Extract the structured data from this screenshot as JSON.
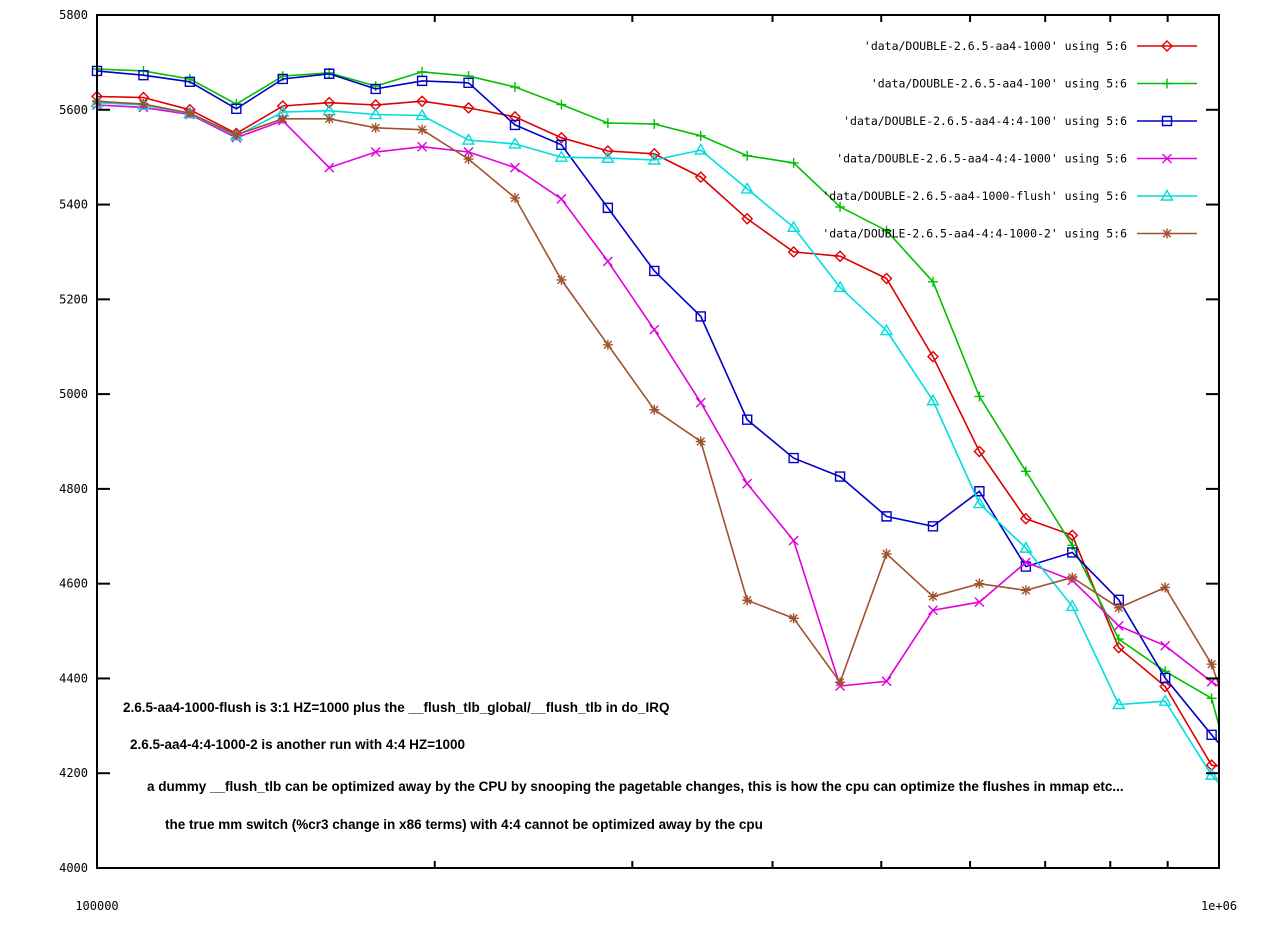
{
  "chart_data": {
    "type": "line",
    "title": "",
    "xlabel": "",
    "ylabel": "",
    "x_scale": "log",
    "xlim": [
      100000,
      1000000
    ],
    "ylim": [
      4000,
      5800
    ],
    "grid": false,
    "legend_position": "top-right",
    "y_ticks": [
      4000,
      4200,
      4400,
      4600,
      4800,
      5000,
      5200,
      5400,
      5600,
      5800
    ],
    "x_major_tick_labels": [
      "100000",
      "1e+06"
    ],
    "x_minor_ticks": [
      200000,
      300000,
      400000,
      500000,
      600000,
      700000,
      800000,
      900000
    ],
    "x": [
      100000,
      110000,
      121000,
      133100,
      146410,
      161051,
      177156,
      194872,
      214359,
      235795,
      259374,
      285312,
      313843,
      345227,
      379750,
      417725,
      459497,
      505447,
      555992,
      611591,
      672750,
      740025,
      814027,
      895430,
      984973
    ],
    "series": [
      {
        "name": "'data/DOUBLE-2.6.5-aa4-1000' using 5:6",
        "color": "#e00000",
        "marker": "diamond",
        "y": [
          5628,
          5626,
          5600,
          5550,
          5608,
          5615,
          5610,
          5618,
          5604,
          5585,
          5541,
          5513,
          5507,
          5458,
          5370,
          5300,
          5291,
          5244,
          5079,
          4879,
          4737,
          4702,
          4465,
          4383,
          4217
        ],
        "clip_y": 4215
      },
      {
        "name": "'data/DOUBLE-2.6.5-aa4-100' using 5:6",
        "color": "#00c000",
        "marker": "plus",
        "y": [
          5686,
          5682,
          5665,
          5612,
          5671,
          5678,
          5650,
          5680,
          5671,
          5648,
          5611,
          5572,
          5570,
          5545,
          5503,
          5488,
          5395,
          5345,
          5237,
          4995,
          4837,
          4681,
          4483,
          4415,
          4358
        ],
        "clip_y": 4300
      },
      {
        "name": "'data/DOUBLE-2.6.5-aa4-4:4-100' using 5:6",
        "color": "#0000c8",
        "marker": "square",
        "y": [
          5682,
          5673,
          5659,
          5602,
          5665,
          5676,
          5644,
          5661,
          5657,
          5568,
          5526,
          5393,
          5260,
          5164,
          4946,
          4865,
          4826,
          4742,
          4721,
          4795,
          4636,
          4666,
          4566,
          4401,
          4281
        ],
        "clip_y": 4263
      },
      {
        "name": "'data/DOUBLE-2.6.5-aa4-4:4-1000' using 5:6",
        "color": "#e000e0",
        "marker": "cross",
        "y": [
          5610,
          5605,
          5590,
          5541,
          5577,
          5478,
          5511,
          5522,
          5511,
          5478,
          5412,
          5280,
          5136,
          4982,
          4811,
          4691,
          4384,
          4394,
          4544,
          4561,
          4645,
          4607,
          4511,
          4469,
          4393
        ],
        "clip_y": 4383
      },
      {
        "name": "'data/DOUBLE-2.6.5-aa4-1000-flush' using 5:6",
        "color": "#00dede",
        "marker": "triangle",
        "y": [
          5615,
          5610,
          5592,
          5545,
          5595,
          5598,
          5590,
          5588,
          5536,
          5528,
          5500,
          5498,
          5494,
          5515,
          5433,
          5352,
          5225,
          5134,
          4986,
          4769,
          4675,
          4552,
          4345,
          4352,
          4196
        ],
        "clip_y": 4179
      },
      {
        "name": "'data/DOUBLE-2.6.5-aa4-4:4-1000-2' using 5:6",
        "color": "#a0522d",
        "marker": "star",
        "y": [
          5618,
          5612,
          5593,
          5547,
          5581,
          5581,
          5562,
          5558,
          5496,
          5414,
          5241,
          5104,
          4967,
          4900,
          4565,
          4527,
          4392,
          4663,
          4573,
          4600,
          4586,
          4613,
          4549,
          4592,
          4430
        ],
        "clip_y": 4385
      }
    ],
    "annotations": [
      {
        "text": "2.6.5-aa4-1000-flush is 3:1 HZ=1000 plus the __flush_tlb_global/__flush_tlb in do_IRQ",
        "x": 123,
        "y": 712
      },
      {
        "text": "2.6.5-aa4-4:4-1000-2 is another run with 4:4 HZ=1000",
        "x": 130,
        "y": 749
      },
      {
        "text": "a dummy __flush_tlb can be optimized away by the CPU by snooping the pagetable changes, this is how the cpu can optimize the flushes in mmap etc...",
        "x": 147,
        "y": 791
      },
      {
        "text": "the true mm switch (%cr3 change in x86 terms) with 4:4 cannot be optimized away by the cpu",
        "x": 165,
        "y": 829
      }
    ]
  },
  "layout_colors": {
    "background": "#ffffff",
    "border": "#000000",
    "text": "#000000"
  }
}
